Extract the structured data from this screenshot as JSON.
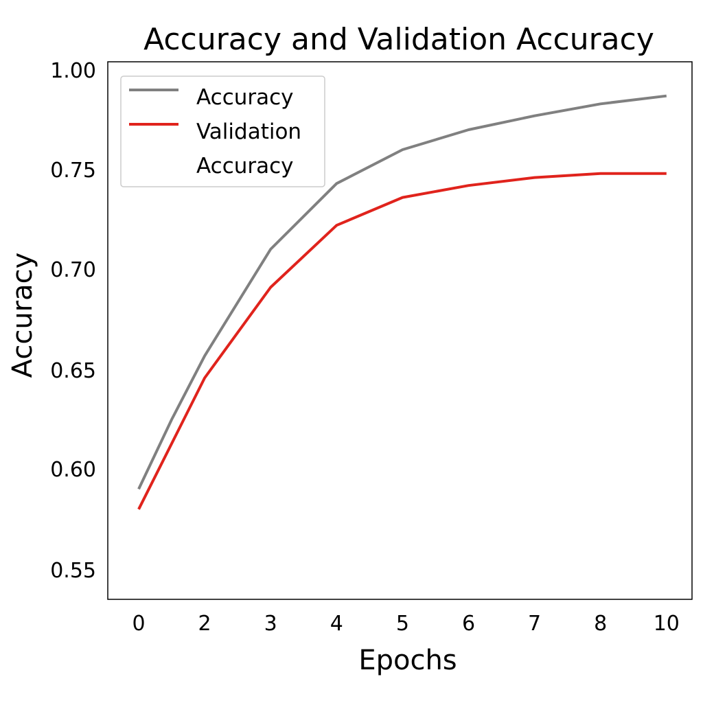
{
  "chart_data": {
    "type": "line",
    "title": "Accuracy and Validation Accuracy",
    "xlabel": "Epochs",
    "ylabel": "Accuracy",
    "x_tick_labels": [
      "0",
      "2",
      "3",
      "4",
      "5",
      "6",
      "7",
      "8",
      "10"
    ],
    "y_tick_labels": [
      "0.55",
      "0.60",
      "0.65",
      "0.70",
      "0.75",
      "1.00"
    ],
    "legend": {
      "placement": "top-left",
      "entries": [
        {
          "label_lines": [
            "Accuracy"
          ],
          "color": "#808080"
        },
        {
          "label_lines": [
            "Validation",
            "Accuracy"
          ],
          "color": "#e0231c"
        }
      ]
    },
    "grid": false,
    "series": [
      {
        "color": "#808080",
        "values": [
          0.59,
          0.625,
          0.657,
          0.71,
          0.743,
          0.76,
          0.77,
          0.777,
          0.783,
          0.787
        ],
        "x_positions": [
          0,
          0.5,
          1,
          2,
          3,
          4,
          5,
          6,
          7,
          8
        ]
      },
      {
        "color": "#e0231c",
        "values": [
          0.58,
          0.646,
          0.691,
          0.722,
          0.736,
          0.742,
          0.746,
          0.748,
          0.748
        ],
        "x_positions": [
          0,
          1,
          2,
          3,
          4,
          5,
          6,
          7,
          8
        ]
      }
    ]
  }
}
